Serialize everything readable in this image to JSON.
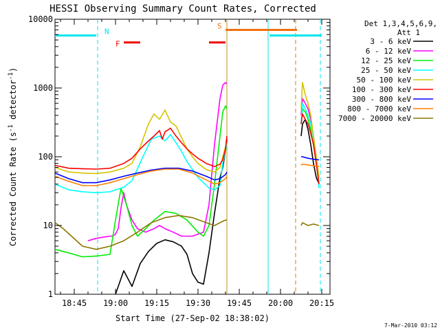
{
  "chart_data": {
    "type": "line",
    "title": "HESSI Observing Summary Count Rates, Corrected",
    "xlabel": "Start Time (27-Sep-02 18:38:02)",
    "ylabel_main": "Corrected Count Rate (s",
    "ylabel_sup1": "-1",
    "ylabel_mid": " detector",
    "ylabel_sup2": "-1",
    "ylabel_end": ")",
    "yscale": "log",
    "ylim": [
      1,
      10000
    ],
    "xlim_minutes": [
      0,
      100
    ],
    "x_ticks": [
      {
        "label": "18:45",
        "minute": 7
      },
      {
        "label": "19:00",
        "minute": 22
      },
      {
        "label": "19:15",
        "minute": 37
      },
      {
        "label": "19:30",
        "minute": 52
      },
      {
        "label": "19:45",
        "minute": 67
      },
      {
        "label": "20:00",
        "minute": 82
      },
      {
        "label": "20:15",
        "minute": 97
      }
    ],
    "y_ticks": [
      {
        "label": "1",
        "value": 1
      },
      {
        "label": "10",
        "value": 10
      },
      {
        "label": "100",
        "value": 100
      },
      {
        "label": "1000",
        "value": 1000
      },
      {
        "label": "10000",
        "value": 10000
      }
    ],
    "legend_header": [
      "Det 1,3,4,5,6,9,",
      "Att 1"
    ],
    "legend_placement": "right",
    "footer_date": "7-Mar-2010 03:12",
    "flags": [
      {
        "label": "N",
        "color": "#00e5ee",
        "segments": [
          [
            0,
            15
          ],
          [
            78,
            97
          ]
        ],
        "y": 5800
      },
      {
        "label": "F",
        "color": "#ee0000",
        "segments": [
          [
            25,
            31
          ],
          [
            56,
            62
          ]
        ],
        "y": 4600
      },
      {
        "label": "S",
        "color": "#f07010",
        "segments": [
          [
            62,
            88
          ]
        ],
        "y": 7000
      }
    ],
    "vlines": [
      {
        "minute": 15.5,
        "color": "#00e5ee",
        "style": "dashed"
      },
      {
        "minute": 62.5,
        "color": "#c09020",
        "style": "solid"
      },
      {
        "minute": 77.5,
        "color": "#00e5ee",
        "style": "solid"
      },
      {
        "minute": 87.5,
        "color": "#d08000",
        "style": "dashed"
      },
      {
        "minute": 96.5,
        "color": "#00e5ee",
        "style": "dashed"
      }
    ],
    "series": [
      {
        "name": "3 - 6 keV",
        "color": "#000000",
        "gap": [
          62.5,
          89.5
        ],
        "x": [
          22,
          25,
          28,
          31,
          34,
          37,
          40,
          43,
          46,
          48,
          50,
          52,
          54,
          56,
          58,
          60,
          61,
          62,
          62.5,
          89.5,
          90,
          91,
          92,
          93,
          94,
          95,
          96
        ],
        "y": [
          1,
          2.2,
          1.3,
          2.8,
          4.2,
          5.5,
          6.2,
          5.8,
          5,
          3.8,
          2,
          1.5,
          1.4,
          4,
          15,
          50,
          70,
          120,
          180,
          200,
          300,
          350,
          250,
          150,
          80,
          50,
          40
        ]
      },
      {
        "name": "6 - 12 keV",
        "color": "#ff00ff",
        "gap": [
          62.5,
          89.5
        ],
        "x": [
          12,
          15,
          18,
          20,
          21,
          22,
          23,
          24,
          25,
          26,
          28,
          30,
          33,
          36,
          38,
          40,
          43,
          46,
          50,
          54,
          56,
          58,
          60,
          61,
          62,
          62.5,
          89.5,
          90,
          91,
          92,
          93,
          94,
          95,
          96
        ],
        "y": [
          6,
          6.5,
          6.8,
          7,
          7,
          7.5,
          9,
          18,
          30,
          20,
          12,
          9,
          8,
          9,
          10,
          9,
          8,
          7,
          7,
          8,
          20,
          150,
          700,
          1100,
          1200,
          1150,
          400,
          700,
          600,
          500,
          350,
          200,
          90,
          40
        ]
      },
      {
        "name": "12 - 25 keV",
        "color": "#00ee00",
        "gap": [
          62.5,
          89.5
        ],
        "x": [
          0,
          5,
          10,
          15,
          20,
          22,
          24,
          26,
          28,
          30,
          33,
          36,
          40,
          44,
          48,
          52,
          54,
          56,
          58,
          60,
          61,
          62,
          62.5,
          89.5,
          90,
          91,
          92,
          93,
          94,
          95,
          96
        ],
        "y": [
          4.5,
          4,
          3.5,
          3.6,
          3.8,
          12,
          35,
          20,
          10,
          7,
          9,
          12,
          16,
          15,
          12,
          8,
          7,
          10,
          40,
          200,
          450,
          550,
          500,
          300,
          500,
          450,
          350,
          250,
          150,
          80,
          40
        ]
      },
      {
        "name": "25 - 50 keV",
        "color": "#00ffff",
        "gap": [
          62.5,
          89.5
        ],
        "x": [
          0,
          5,
          10,
          15,
          20,
          25,
          28,
          32,
          35,
          38,
          40,
          42,
          44,
          46,
          48,
          52,
          56,
          58,
          60,
          61,
          62,
          62.5,
          89.5,
          90,
          91,
          92,
          93,
          94,
          95,
          96
        ],
        "y": [
          40,
          33,
          31,
          30,
          31,
          36,
          45,
          100,
          180,
          200,
          170,
          210,
          160,
          120,
          85,
          50,
          35,
          33,
          38,
          80,
          120,
          160,
          300,
          600,
          500,
          400,
          300,
          200,
          100,
          35
        ]
      },
      {
        "name": "50 - 100 keV",
        "color": "#d4c400",
        "gap": [
          62.5,
          89.5
        ],
        "x": [
          0,
          5,
          10,
          15,
          20,
          25,
          28,
          31,
          34,
          36,
          38,
          40,
          42,
          44,
          46,
          48,
          50,
          52,
          55,
          58,
          60,
          61,
          62,
          62.5,
          89.5,
          90,
          91,
          92,
          93,
          94,
          95,
          96
        ],
        "y": [
          70,
          60,
          58,
          57,
          60,
          68,
          80,
          140,
          300,
          420,
          350,
          480,
          320,
          280,
          190,
          130,
          100,
          80,
          65,
          60,
          70,
          100,
          140,
          160,
          500,
          1200,
          800,
          600,
          400,
          200,
          100,
          50
        ]
      },
      {
        "name": "100 - 300 keV",
        "color": "#ff0000",
        "gap": [
          62.5,
          89.5
        ],
        "x": [
          0,
          5,
          10,
          15,
          20,
          25,
          28,
          31,
          34,
          36,
          38,
          39,
          40,
          42,
          44,
          46,
          48,
          50,
          52,
          55,
          58,
          60,
          61,
          62,
          62.5,
          89.5,
          90,
          91,
          92,
          93,
          94,
          95,
          96
        ],
        "y": [
          75,
          68,
          67,
          66,
          68,
          80,
          95,
          130,
          170,
          200,
          240,
          180,
          230,
          260,
          200,
          160,
          130,
          110,
          95,
          80,
          72,
          78,
          90,
          130,
          200,
          300,
          420,
          350,
          300,
          220,
          150,
          80,
          40
        ]
      },
      {
        "name": "300 - 800 keV",
        "color": "#0000ff",
        "gap": [
          62.5,
          89.5
        ],
        "x": [
          0,
          5,
          10,
          15,
          20,
          25,
          30,
          35,
          40,
          45,
          50,
          55,
          58,
          60,
          62,
          62.5,
          89.5,
          90,
          92,
          94,
          96
        ],
        "y": [
          58,
          48,
          42,
          42,
          46,
          52,
          58,
          64,
          68,
          68,
          62,
          52,
          46,
          48,
          55,
          60,
          100,
          100,
          95,
          92,
          90
        ]
      },
      {
        "name": "800 - 7000 keV",
        "color": "#ff8000",
        "gap": [
          62.5,
          89.5
        ],
        "x": [
          0,
          5,
          10,
          15,
          20,
          25,
          30,
          35,
          40,
          45,
          50,
          55,
          58,
          60,
          62,
          62.5,
          89.5,
          90,
          92,
          94,
          96
        ],
        "y": [
          52,
          44,
          38,
          38,
          42,
          48,
          55,
          62,
          66,
          66,
          58,
          46,
          40,
          42,
          48,
          52,
          75,
          78,
          76,
          74,
          72
        ]
      },
      {
        "name": "7000 - 20000 keV",
        "color": "#8b7500",
        "gap": [
          62.5,
          89.5
        ],
        "x": [
          0,
          3,
          6,
          10,
          15,
          20,
          25,
          30,
          35,
          40,
          45,
          50,
          55,
          58,
          60,
          62,
          62.5,
          89.5,
          90,
          92,
          94,
          96
        ],
        "y": [
          11,
          9,
          7,
          5,
          4.5,
          5,
          6,
          8,
          11,
          13,
          14,
          13,
          11,
          10,
          11,
          12,
          12,
          10,
          11,
          10,
          10.5,
          10
        ]
      }
    ]
  }
}
